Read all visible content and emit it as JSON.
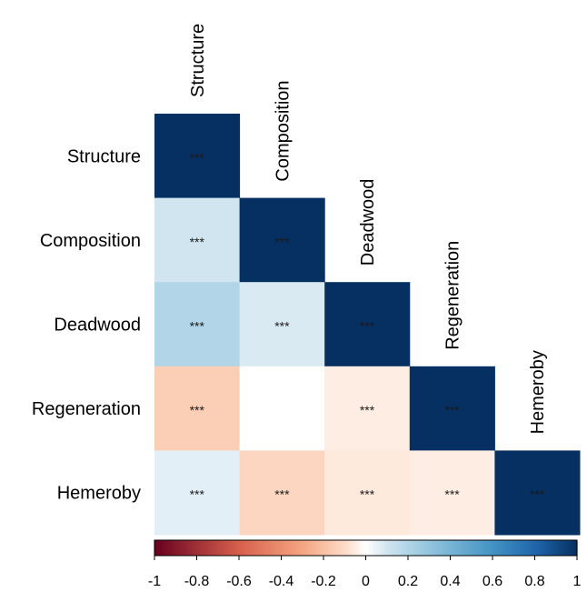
{
  "chart_data": {
    "type": "heatmap",
    "layout": "lower-triangle",
    "variables": [
      "Structure",
      "Composition",
      "Deadwood",
      "Regeneration",
      "Hemeroby"
    ],
    "matrix": [
      [
        1.0,
        0.1,
        0.2,
        -0.15,
        0.06
      ],
      [
        0.1,
        1.0,
        0.08,
        0.0,
        -0.12
      ],
      [
        0.2,
        0.08,
        1.0,
        -0.05,
        -0.06
      ],
      [
        -0.15,
        0.0,
        -0.05,
        1.0,
        -0.05
      ],
      [
        0.06,
        -0.12,
        -0.06,
        -0.05,
        1.0
      ]
    ],
    "significance": [
      [
        "***",
        "",
        "",
        "",
        ""
      ],
      [
        "***",
        "***",
        "",
        "",
        ""
      ],
      [
        "***",
        "***",
        "***",
        "",
        ""
      ],
      [
        "***",
        "",
        "***",
        "***",
        ""
      ],
      [
        "***",
        "***",
        "***",
        "***",
        "***"
      ]
    ],
    "colorbar": {
      "range": [
        -1,
        1
      ],
      "ticks": [
        "-1",
        "-0.8",
        "-0.6",
        "-0.4",
        "-0.2",
        "0",
        "0.2",
        "0.4",
        "0.6",
        "0.8",
        "1"
      ]
    },
    "colors": {
      "negative": "#67001F",
      "neutral": "#FFFFFF",
      "positive": "#053061"
    }
  }
}
